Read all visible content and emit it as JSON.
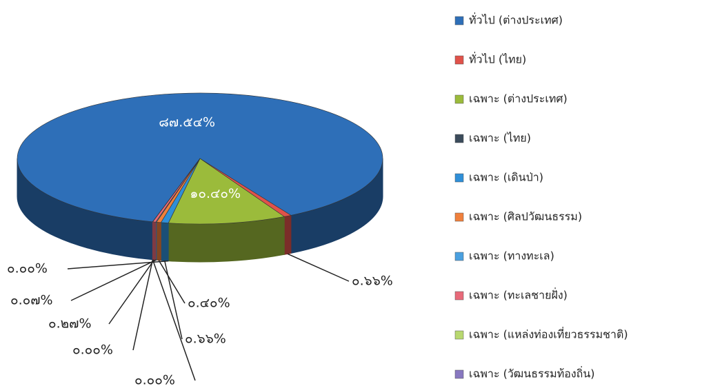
{
  "chart_data": {
    "type": "pie3d",
    "categories": [
      "ทั่วไป (ต่างประเทศ)",
      "ทั่วไป (ไทย)",
      "เฉพาะ (ต่างประเทศ)",
      "เฉพาะ (ไทย)",
      "เฉพาะ (เดินป่า)",
      "เฉพาะ (ศิลปวัฒนธรรม)",
      "เฉพาะ (ทางทะเล)",
      "เฉพาะ (ทะเลชายฝั่ง)",
      "เฉพาะ (แหล่งท่องเที่ยวธรรมชาติ)",
      "เฉพาะ (วัฒนธรรมท้องถิ่น)"
    ],
    "values": [
      87.54,
      0.66,
      10.4,
      0.0,
      0.66,
      0.4,
      0.07,
      0.27,
      0.0,
      0.0
    ],
    "value_labels": [
      "๘๗.๕๔%",
      "๐.๖๖%",
      "๑๐.๔๐%",
      "๐.๐๐%",
      "๐.๖๖%",
      "๐.๔๐%",
      "๐.๐๗%",
      "๐.๒๗%",
      "๐.๐๐%",
      "๐.๐๐%"
    ],
    "colors": [
      "#2e6fb8",
      "#e0524a",
      "#9bbb3b",
      "#3b4b5b",
      "#2f8fd8",
      "#f0803c",
      "#4aa0e0",
      "#e86a7a",
      "#b8d870",
      "#8878c0"
    ],
    "legend": "right"
  }
}
